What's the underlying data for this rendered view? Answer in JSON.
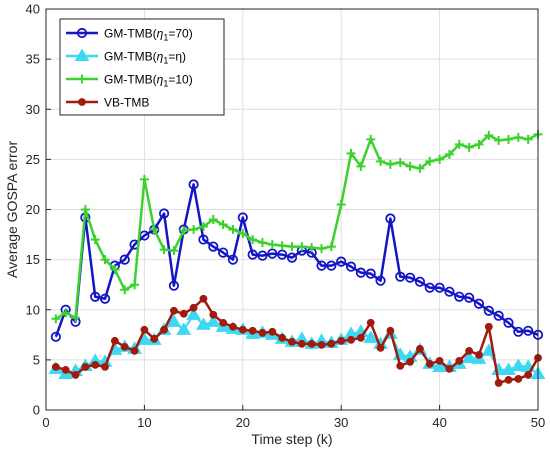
{
  "chart_data": {
    "type": "line",
    "title": "",
    "xlabel": "Time step (k)",
    "ylabel": "Average GOSPA error",
    "xlim": [
      0,
      50
    ],
    "ylim": [
      0,
      40
    ],
    "xticks": [
      0,
      10,
      20,
      30,
      40,
      50
    ],
    "yticks": [
      0,
      5,
      10,
      15,
      20,
      25,
      30,
      35,
      40
    ],
    "grid": true,
    "legend_position": "top-left",
    "x": [
      1,
      2,
      3,
      4,
      5,
      6,
      7,
      8,
      9,
      10,
      11,
      12,
      13,
      14,
      15,
      16,
      17,
      18,
      19,
      20,
      21,
      22,
      23,
      24,
      25,
      26,
      27,
      28,
      29,
      30,
      31,
      32,
      33,
      34,
      35,
      36,
      37,
      38,
      39,
      40,
      41,
      42,
      43,
      44,
      45,
      46,
      47,
      48,
      49,
      50
    ],
    "series": [
      {
        "name": "GM-TMB(η1=70)",
        "legend_parts": [
          "GM-TMB(",
          "η",
          "1",
          "=70)"
        ],
        "color": "#1515c8",
        "marker": "circle",
        "values": [
          7.3,
          10.0,
          8.8,
          19.2,
          11.3,
          11.1,
          14.4,
          15.0,
          16.5,
          17.4,
          18.0,
          19.6,
          12.4,
          18.0,
          22.5,
          17.0,
          16.3,
          15.7,
          15.0,
          19.2,
          15.5,
          15.4,
          15.6,
          15.5,
          15.2,
          15.9,
          15.7,
          14.4,
          14.4,
          14.8,
          14.3,
          13.7,
          13.6,
          12.9,
          19.1,
          13.3,
          13.2,
          12.8,
          12.2,
          12.2,
          11.8,
          11.3,
          11.2,
          10.6,
          9.9,
          9.4,
          8.7,
          7.8,
          7.9,
          7.5
        ]
      },
      {
        "name": "GM-TMB(η1=η)",
        "legend_parts": [
          "GM-TMB(",
          "η",
          "1",
          "=η)"
        ],
        "color": "#3fd8f2",
        "marker": "triangle",
        "values": [
          4.1,
          3.6,
          3.9,
          4.4,
          4.9,
          4.8,
          6.0,
          6.3,
          6.1,
          7.0,
          7.0,
          8.0,
          8.8,
          8.0,
          9.5,
          8.5,
          8.8,
          8.3,
          8.1,
          8.0,
          7.6,
          7.7,
          7.5,
          7.1,
          6.8,
          7.1,
          6.6,
          6.9,
          6.7,
          7.0,
          7.6,
          7.8,
          7.2,
          6.6,
          7.6,
          5.5,
          5.3,
          6.0,
          4.6,
          4.3,
          4.3,
          4.6,
          5.2,
          5.1,
          5.9,
          4.0,
          4.0,
          4.4,
          4.3,
          3.6
        ]
      },
      {
        "name": "GM-TMB(η1=10)",
        "legend_parts": [
          "GM-TMB(",
          "η",
          "1",
          "=10)"
        ],
        "color": "#3cd22d",
        "marker": "plus",
        "values": [
          9.1,
          9.7,
          9.2,
          20.0,
          17.0,
          15.0,
          14.0,
          12.0,
          12.5,
          23.0,
          18.0,
          16.0,
          15.9,
          17.9,
          18.0,
          18.3,
          19.0,
          18.5,
          18.0,
          17.6,
          17.0,
          16.7,
          16.5,
          16.4,
          16.3,
          16.3,
          16.2,
          16.1,
          16.3,
          20.5,
          25.6,
          24.3,
          27.0,
          24.8,
          24.5,
          24.7,
          24.3,
          24.1,
          24.8,
          25.0,
          25.5,
          26.5,
          26.2,
          26.5,
          27.4,
          26.9,
          27.0,
          27.2,
          27.0,
          27.5
        ]
      },
      {
        "name": "VB-TMB",
        "legend_parts": [
          "VB-TMB"
        ],
        "color": "#a01a0e",
        "marker": "dot",
        "values": [
          4.3,
          4.0,
          3.5,
          4.3,
          4.5,
          4.3,
          6.9,
          6.3,
          5.9,
          8.0,
          7.1,
          8.0,
          9.9,
          9.6,
          10.2,
          11.1,
          9.5,
          8.7,
          8.3,
          8.0,
          7.9,
          7.7,
          7.8,
          7.2,
          6.8,
          6.6,
          6.6,
          6.5,
          6.6,
          6.9,
          7.0,
          7.2,
          8.7,
          6.2,
          7.9,
          4.4,
          4.8,
          6.1,
          4.6,
          4.9,
          4.1,
          4.9,
          5.9,
          5.5,
          8.3,
          2.7,
          3.0,
          3.1,
          3.5,
          5.2
        ]
      }
    ]
  }
}
